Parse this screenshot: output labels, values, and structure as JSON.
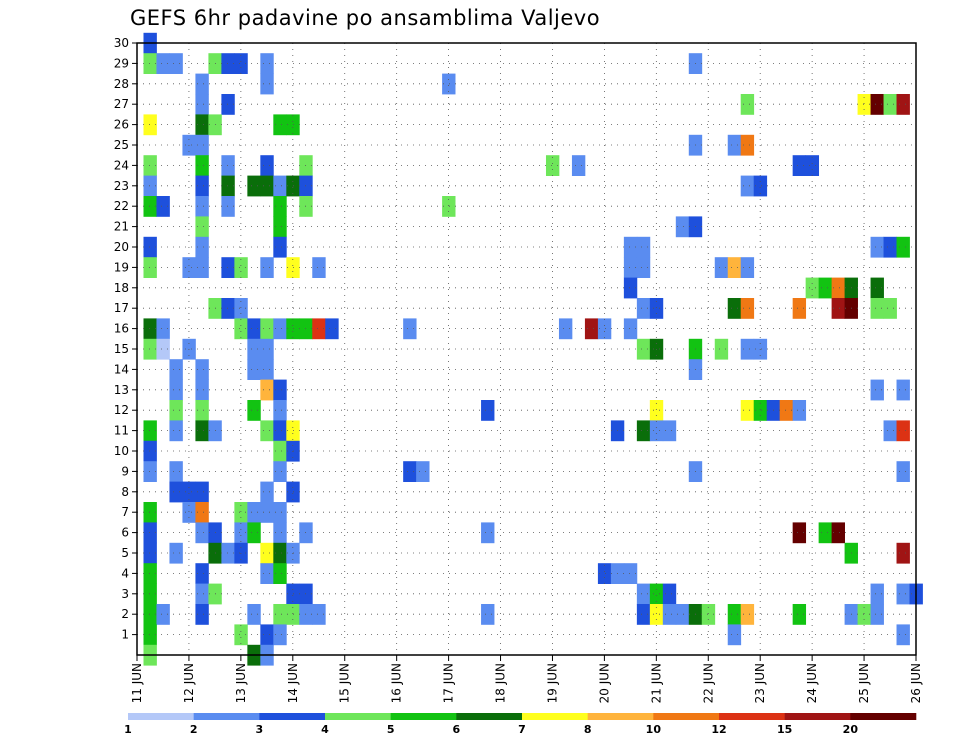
{
  "chart_data": {
    "type": "heatmap",
    "title": "GEFS 6hr padavine po ansamblima Valjevo",
    "y_tick_labels": [
      "1",
      "2",
      "3",
      "4",
      "5",
      "6",
      "7",
      "8",
      "9",
      "10",
      "11",
      "12",
      "13",
      "14",
      "15",
      "16",
      "17",
      "18",
      "19",
      "20",
      "21",
      "22",
      "23",
      "24",
      "25",
      "26",
      "27",
      "28",
      "29",
      "30"
    ],
    "x_tick_labels": [
      "11 JUN",
      "12 JUN",
      "13 JUN",
      "14 JUN",
      "15 JUN",
      "16 JUN",
      "17 JUN",
      "18 JUN",
      "19 JUN",
      "20 JUN",
      "21 JUN",
      "22 JUN",
      "23 JUN",
      "24 JUN",
      "25 JUN",
      "26 JUN"
    ],
    "grid": true,
    "legend_position": "bottom",
    "color_levels": [
      {
        "label": "1",
        "color": "#b4c8f8"
      },
      {
        "label": "2",
        "color": "#5a8cf0"
      },
      {
        "label": "3",
        "color": "#1e50dc"
      },
      {
        "label": "4",
        "color": "#6ee65a"
      },
      {
        "label": "5",
        "color": "#12c312"
      },
      {
        "label": "6",
        "color": "#0a6e0a"
      },
      {
        "label": "7",
        "color": "#ffff1e"
      },
      {
        "label": "8",
        "color": "#ffb43c"
      },
      {
        "label": "10",
        "color": "#f07814"
      },
      {
        "label": "12",
        "color": "#dc3214"
      },
      {
        "label": "15",
        "color": "#a01414"
      },
      {
        "label": "20",
        "color": "#640000"
      }
    ],
    "legend_tick_labels": [
      "1",
      "2",
      "3",
      "4",
      "5",
      "6",
      "7",
      "8",
      "10",
      "12",
      "15",
      "20"
    ],
    "cells": [
      [
        30,
        11.25,
        2
      ],
      [
        29,
        11.25,
        3
      ],
      [
        29,
        11.5,
        1
      ],
      [
        29,
        11.75,
        1
      ],
      [
        29,
        12.5,
        3
      ],
      [
        29,
        12.75,
        2
      ],
      [
        29,
        13,
        2
      ],
      [
        29,
        13.5,
        1
      ],
      [
        29,
        21.75,
        1
      ],
      [
        28,
        12.25,
        1
      ],
      [
        28,
        13.5,
        1
      ],
      [
        28,
        17,
        1
      ],
      [
        27,
        12.25,
        1
      ],
      [
        27,
        12.75,
        2
      ],
      [
        27,
        22.75,
        3
      ],
      [
        27,
        25,
        6
      ],
      [
        27,
        25.25,
        11
      ],
      [
        27,
        25.5,
        3
      ],
      [
        27,
        25.75,
        10
      ],
      [
        26,
        11.25,
        6
      ],
      [
        26,
        12.25,
        5
      ],
      [
        26,
        12.5,
        3
      ],
      [
        26,
        13.75,
        4
      ],
      [
        26,
        14,
        4
      ],
      [
        25,
        12,
        1
      ],
      [
        25,
        12.25,
        1
      ],
      [
        25,
        21.75,
        1
      ],
      [
        25,
        22.5,
        1
      ],
      [
        25,
        22.75,
        8
      ],
      [
        24,
        11.25,
        3
      ],
      [
        24,
        12.25,
        4
      ],
      [
        24,
        12.75,
        1
      ],
      [
        24,
        13.5,
        2
      ],
      [
        24,
        14.25,
        3
      ],
      [
        24,
        19,
        3
      ],
      [
        24,
        19.5,
        1
      ],
      [
        24,
        23.75,
        2
      ],
      [
        24,
        24,
        2
      ],
      [
        23,
        11.25,
        1
      ],
      [
        23,
        12.25,
        2
      ],
      [
        23,
        12.75,
        5
      ],
      [
        23,
        13.25,
        5
      ],
      [
        23,
        13.5,
        5
      ],
      [
        23,
        13.75,
        1
      ],
      [
        23,
        14,
        5
      ],
      [
        23,
        14.25,
        2
      ],
      [
        23,
        22.75,
        1
      ],
      [
        23,
        23,
        2
      ],
      [
        22,
        11.25,
        4
      ],
      [
        22,
        11.5,
        2
      ],
      [
        22,
        12.25,
        1
      ],
      [
        22,
        12.75,
        1
      ],
      [
        22,
        13.75,
        4
      ],
      [
        22,
        14.25,
        3
      ],
      [
        22,
        17,
        3
      ],
      [
        21,
        12.25,
        3
      ],
      [
        21,
        13.75,
        4
      ],
      [
        21,
        21.5,
        1
      ],
      [
        21,
        21.75,
        2
      ],
      [
        20,
        11.25,
        2
      ],
      [
        20,
        12.25,
        1
      ],
      [
        20,
        13.75,
        2
      ],
      [
        20,
        20.5,
        1
      ],
      [
        20,
        20.75,
        1
      ],
      [
        20,
        25.25,
        1
      ],
      [
        20,
        25.5,
        2
      ],
      [
        20,
        25.75,
        4
      ],
      [
        19,
        11.25,
        3
      ],
      [
        19,
        12,
        1
      ],
      [
        19,
        12.25,
        1
      ],
      [
        19,
        12.75,
        2
      ],
      [
        19,
        13,
        3
      ],
      [
        19,
        13.5,
        1
      ],
      [
        19,
        14,
        6
      ],
      [
        19,
        14.5,
        1
      ],
      [
        19,
        20.5,
        1
      ],
      [
        19,
        20.75,
        1
      ],
      [
        19,
        22.25,
        1
      ],
      [
        19,
        22.5,
        7
      ],
      [
        19,
        22.75,
        1
      ],
      [
        18,
        20.5,
        2
      ],
      [
        18,
        24,
        3
      ],
      [
        18,
        24.25,
        4
      ],
      [
        18,
        24.5,
        8
      ],
      [
        18,
        24.75,
        5
      ],
      [
        18,
        25.25,
        5
      ],
      [
        17,
        12.5,
        3
      ],
      [
        17,
        12.75,
        2
      ],
      [
        17,
        13,
        1
      ],
      [
        17,
        20.75,
        1
      ],
      [
        17,
        21,
        2
      ],
      [
        17,
        22.5,
        5
      ],
      [
        17,
        22.75,
        8
      ],
      [
        17,
        23.75,
        8
      ],
      [
        17,
        24.5,
        10
      ],
      [
        17,
        24.75,
        11
      ],
      [
        17,
        25.25,
        3
      ],
      [
        17,
        25.5,
        3
      ],
      [
        16,
        11.25,
        5
      ],
      [
        16,
        11.5,
        1
      ],
      [
        16,
        13,
        3
      ],
      [
        16,
        13.25,
        2
      ],
      [
        16,
        13.5,
        3
      ],
      [
        16,
        13.75,
        1
      ],
      [
        16,
        14,
        4
      ],
      [
        16,
        14.25,
        4
      ],
      [
        16,
        14.5,
        9
      ],
      [
        16,
        14.75,
        2
      ],
      [
        16,
        16.25,
        1
      ],
      [
        16,
        19.25,
        1
      ],
      [
        16,
        19.75,
        10
      ],
      [
        16,
        20,
        1
      ],
      [
        16,
        20.5,
        1
      ],
      [
        15,
        11.25,
        3
      ],
      [
        15,
        11.5,
        0
      ],
      [
        15,
        12,
        1
      ],
      [
        15,
        13.25,
        1
      ],
      [
        15,
        13.5,
        1
      ],
      [
        15,
        20.75,
        3
      ],
      [
        15,
        21,
        5
      ],
      [
        15,
        21.75,
        4
      ],
      [
        15,
        22.25,
        3
      ],
      [
        15,
        22.75,
        1
      ],
      [
        15,
        23,
        1
      ],
      [
        14,
        11.75,
        1
      ],
      [
        14,
        12.25,
        1
      ],
      [
        14,
        13.25,
        1
      ],
      [
        14,
        13.5,
        1
      ],
      [
        14,
        21.75,
        1
      ],
      [
        13,
        11.75,
        1
      ],
      [
        13,
        12.25,
        1
      ],
      [
        13,
        13.5,
        7
      ],
      [
        13,
        13.75,
        2
      ],
      [
        13,
        25.25,
        1
      ],
      [
        13,
        25.75,
        1
      ],
      [
        12,
        11.75,
        3
      ],
      [
        12,
        12.25,
        3
      ],
      [
        12,
        13.25,
        4
      ],
      [
        12,
        13.75,
        1
      ],
      [
        12,
        17.75,
        2
      ],
      [
        12,
        21,
        6
      ],
      [
        12,
        22.75,
        6
      ],
      [
        12,
        23,
        4
      ],
      [
        12,
        23.25,
        2
      ],
      [
        12,
        23.5,
        8
      ],
      [
        12,
        23.75,
        1
      ],
      [
        11,
        11.25,
        4
      ],
      [
        11,
        11.75,
        1
      ],
      [
        11,
        12.25,
        5
      ],
      [
        11,
        12.5,
        1
      ],
      [
        11,
        13.5,
        3
      ],
      [
        11,
        13.75,
        2
      ],
      [
        11,
        14,
        6
      ],
      [
        11,
        20.25,
        2
      ],
      [
        11,
        20.75,
        5
      ],
      [
        11,
        21,
        1
      ],
      [
        11,
        21.25,
        1
      ],
      [
        11,
        25.5,
        1
      ],
      [
        11,
        25.75,
        9
      ],
      [
        10,
        11.25,
        2
      ],
      [
        10,
        13.75,
        3
      ],
      [
        10,
        14,
        2
      ],
      [
        9,
        11.25,
        1
      ],
      [
        9,
        11.75,
        1
      ],
      [
        9,
        13.75,
        1
      ],
      [
        9,
        16.25,
        2
      ],
      [
        9,
        16.5,
        1
      ],
      [
        9,
        21.75,
        1
      ],
      [
        9,
        25.75,
        1
      ],
      [
        8,
        11.75,
        2
      ],
      [
        8,
        12,
        2
      ],
      [
        8,
        12.25,
        2
      ],
      [
        8,
        13.5,
        1
      ],
      [
        8,
        14,
        2
      ],
      [
        7,
        11.25,
        4
      ],
      [
        7,
        12,
        1
      ],
      [
        7,
        12.25,
        8
      ],
      [
        7,
        13,
        3
      ],
      [
        7,
        13.25,
        1
      ],
      [
        7,
        13.5,
        1
      ],
      [
        7,
        13.75,
        1
      ],
      [
        6,
        11.25,
        2
      ],
      [
        6,
        12.25,
        1
      ],
      [
        6,
        12.5,
        2
      ],
      [
        6,
        13,
        1
      ],
      [
        6,
        13.25,
        4
      ],
      [
        6,
        13.75,
        1
      ],
      [
        6,
        14.25,
        1
      ],
      [
        6,
        17.75,
        1
      ],
      [
        6,
        23.75,
        11
      ],
      [
        6,
        24.25,
        4
      ],
      [
        6,
        24.5,
        11
      ],
      [
        5,
        11.25,
        2
      ],
      [
        5,
        11.75,
        1
      ],
      [
        5,
        12.5,
        5
      ],
      [
        5,
        12.75,
        1
      ],
      [
        5,
        13,
        2
      ],
      [
        5,
        13.5,
        6
      ],
      [
        5,
        13.75,
        5
      ],
      [
        5,
        14,
        1
      ],
      [
        5,
        24.75,
        4
      ],
      [
        5,
        25.75,
        10
      ],
      [
        4,
        11.25,
        4
      ],
      [
        4,
        12.25,
        2
      ],
      [
        4,
        13.5,
        1
      ],
      [
        4,
        13.75,
        4
      ],
      [
        4,
        20,
        2
      ],
      [
        4,
        20.25,
        1
      ],
      [
        4,
        20.5,
        1
      ],
      [
        3,
        11.25,
        4
      ],
      [
        3,
        12.25,
        1
      ],
      [
        3,
        12.5,
        3
      ],
      [
        3,
        14,
        2
      ],
      [
        3,
        14.25,
        2
      ],
      [
        3,
        20.75,
        1
      ],
      [
        3,
        21,
        4
      ],
      [
        3,
        21.25,
        2
      ],
      [
        3,
        25.25,
        1
      ],
      [
        3,
        25.75,
        1
      ],
      [
        3,
        26,
        2
      ],
      [
        2,
        11.25,
        4
      ],
      [
        2,
        11.5,
        1
      ],
      [
        2,
        12.25,
        2
      ],
      [
        2,
        13.25,
        1
      ],
      [
        2,
        13.75,
        3
      ],
      [
        2,
        14,
        3
      ],
      [
        2,
        14.25,
        1
      ],
      [
        2,
        14.5,
        1
      ],
      [
        2,
        17.75,
        1
      ],
      [
        2,
        20.75,
        2
      ],
      [
        2,
        21,
        6
      ],
      [
        2,
        21.25,
        1
      ],
      [
        2,
        21.5,
        1
      ],
      [
        2,
        21.75,
        5
      ],
      [
        2,
        22,
        3
      ],
      [
        2,
        22.5,
        4
      ],
      [
        2,
        22.75,
        7
      ],
      [
        2,
        23.75,
        4
      ],
      [
        2,
        24.75,
        1
      ],
      [
        2,
        25,
        3
      ],
      [
        2,
        25.25,
        1
      ],
      [
        1,
        11.25,
        4
      ],
      [
        1,
        13,
        3
      ],
      [
        1,
        13.5,
        2
      ],
      [
        1,
        13.75,
        1
      ],
      [
        1,
        22.5,
        1
      ],
      [
        1,
        25.75,
        1
      ],
      [
        0,
        11.25,
        3
      ],
      [
        0,
        13.25,
        5
      ],
      [
        0,
        13.5,
        1
      ]
    ]
  }
}
